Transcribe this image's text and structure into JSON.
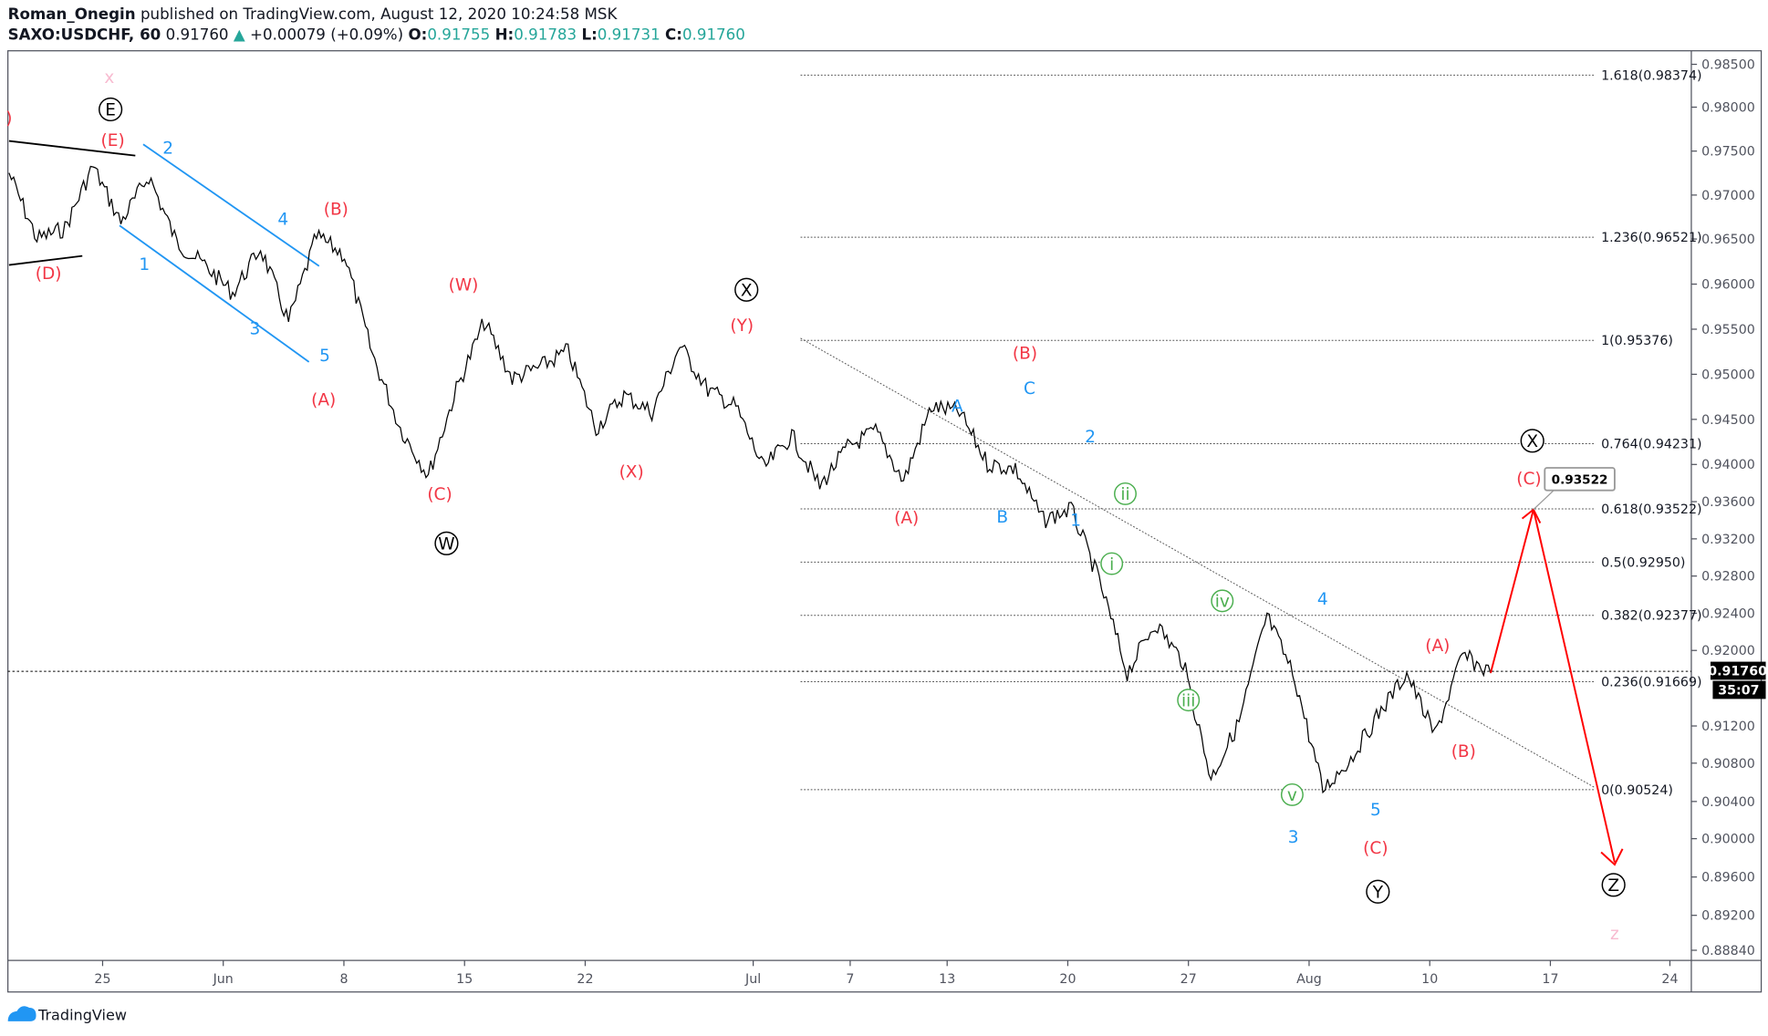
{
  "header": {
    "author": "Roman_Onegin",
    "published": "published on TradingView.com, August 12, 2020 10:24:58 MSK",
    "symbol": "SAXO:USDCHF, 60",
    "last": "0.91760",
    "change": "+0.00079 (+0.09%)",
    "o_label": "O:",
    "o": "0.91755",
    "h_label": "H:",
    "h": "0.91783",
    "l_label": "L:",
    "l": "0.91731",
    "c_label": "C:",
    "c": "0.91760"
  },
  "footer": {
    "brand": "TradingView"
  },
  "colors": {
    "up": "#26a69a",
    "wave_red": "#f23645",
    "wave_blue": "#2196f3",
    "wave_green": "#4caf50",
    "pink": "#f8bbd0"
  },
  "chart_data": {
    "type": "line",
    "title": "SAXO:USDCHF, 60",
    "y_ticks": [
      "0.98500",
      "0.98000",
      "0.97500",
      "0.97000",
      "0.96500",
      "0.96000",
      "0.95500",
      "0.95000",
      "0.94500",
      "0.94000",
      "0.93600",
      "0.93200",
      "0.92800",
      "0.92400",
      "0.92000",
      "0.91200",
      "0.90800",
      "0.90400",
      "0.90000",
      "0.89600",
      "0.89200",
      "0.88840"
    ],
    "x_ticks": [
      "25",
      "Jun",
      "8",
      "15",
      "22",
      "Jul",
      "7",
      "13",
      "20",
      "27",
      "Aug",
      "10",
      "17",
      "24"
    ],
    "current_price": "0.91760",
    "countdown": "35:07",
    "target_box": "0.93522",
    "fib_levels": [
      {
        "label": "1.618(0.98374)",
        "price": 0.98374
      },
      {
        "label": "1.236(0.96521)",
        "price": 0.96521
      },
      {
        "label": "1(0.95376)",
        "price": 0.95376
      },
      {
        "label": "0.764(0.94231)",
        "price": 0.94231
      },
      {
        "label": "0.618(0.93522)",
        "price": 0.93522
      },
      {
        "label": "0.5(0.92950)",
        "price": 0.9295
      },
      {
        "label": "0.382(0.92377)",
        "price": 0.92377
      },
      {
        "label": "0.236(0.91669)",
        "price": 0.91669
      },
      {
        "label": "0(0.90524)",
        "price": 0.90524
      }
    ],
    "price_path_approx": [
      0.9725,
      0.965,
      0.9662,
      0.9733,
      0.9669,
      0.9722,
      0.9646,
      0.9621,
      0.959,
      0.964,
      0.9558,
      0.9653,
      0.9632,
      0.9522,
      0.944,
      0.9388,
      0.9483,
      0.9558,
      0.9495,
      0.9508,
      0.9526,
      0.944,
      0.9477,
      0.9458,
      0.9532,
      0.9483,
      0.9464,
      0.9395,
      0.9432,
      0.9376,
      0.9419,
      0.9437,
      0.9382,
      0.9464,
      0.9458,
      0.9401,
      0.9395,
      0.934,
      0.9352,
      0.9275,
      0.9176,
      0.923,
      0.9188,
      0.9064,
      0.9124,
      0.9237,
      0.917,
      0.9052,
      0.9085,
      0.9133,
      0.9176,
      0.911,
      0.9195,
      0.9176
    ],
    "wave_labels": [
      ")",
      "(E)",
      "(D)",
      "(B)",
      "(A)",
      "(W)",
      "(C)",
      "(X)",
      "(Y)",
      "(B)",
      "(A)",
      "(A)",
      "(B)",
      "(C)",
      "(C)",
      "2",
      "4",
      "1",
      "3",
      "5",
      "A",
      "C",
      "B",
      "2",
      "1",
      "4",
      "5",
      "3",
      "ii",
      "i",
      "iv",
      "iii",
      "v",
      "E",
      "X",
      "W",
      "X",
      "Y",
      "Z",
      "x",
      "z"
    ]
  }
}
